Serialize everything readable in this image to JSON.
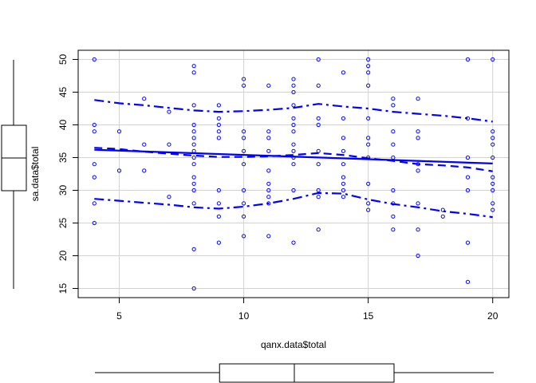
{
  "chart_data": {
    "type": "scatter",
    "title": "",
    "xlabel": "qanx.data$total",
    "ylabel": "sa.data$total",
    "xlim": [
      3.35,
      20.65
    ],
    "ylim": [
      13.6,
      51.4
    ],
    "x_ticks": [
      5,
      10,
      15,
      20
    ],
    "y_ticks": [
      15,
      20,
      25,
      30,
      35,
      40,
      45,
      50
    ],
    "grid": true,
    "point_color": "#0000ff",
    "line_color": "#0000ff",
    "points": [
      [
        4,
        50
      ],
      [
        4,
        40
      ],
      [
        4,
        39
      ],
      [
        4,
        34
      ],
      [
        4,
        32
      ],
      [
        4,
        28
      ],
      [
        4,
        25
      ],
      [
        5,
        39
      ],
      [
        5,
        33
      ],
      [
        6,
        44
      ],
      [
        6,
        37
      ],
      [
        6,
        33
      ],
      [
        7,
        42
      ],
      [
        7,
        37
      ],
      [
        7,
        29
      ],
      [
        8,
        49
      ],
      [
        8,
        48
      ],
      [
        8,
        43
      ],
      [
        8,
        40
      ],
      [
        8,
        39
      ],
      [
        8,
        38
      ],
      [
        8,
        37
      ],
      [
        8,
        36
      ],
      [
        8,
        35
      ],
      [
        8,
        34
      ],
      [
        8,
        32
      ],
      [
        8,
        31
      ],
      [
        8,
        30
      ],
      [
        8,
        28
      ],
      [
        8,
        21
      ],
      [
        8,
        15
      ],
      [
        9,
        43
      ],
      [
        9,
        41
      ],
      [
        9,
        40
      ],
      [
        9,
        39
      ],
      [
        9,
        38
      ],
      [
        9,
        30
      ],
      [
        9,
        28
      ],
      [
        9,
        26
      ],
      [
        9,
        22
      ],
      [
        10,
        47
      ],
      [
        10,
        46
      ],
      [
        10,
        39
      ],
      [
        10,
        38
      ],
      [
        10,
        36
      ],
      [
        10,
        34
      ],
      [
        10,
        30
      ],
      [
        10,
        28
      ],
      [
        10,
        26
      ],
      [
        10,
        23
      ],
      [
        11,
        46
      ],
      [
        11,
        39
      ],
      [
        11,
        38
      ],
      [
        11,
        36
      ],
      [
        11,
        33
      ],
      [
        11,
        31
      ],
      [
        11,
        30
      ],
      [
        11,
        29
      ],
      [
        11,
        28
      ],
      [
        11,
        23
      ],
      [
        12,
        47
      ],
      [
        12,
        46
      ],
      [
        12,
        45
      ],
      [
        12,
        43
      ],
      [
        12,
        41
      ],
      [
        12,
        40
      ],
      [
        12,
        39
      ],
      [
        12,
        37
      ],
      [
        12,
        36
      ],
      [
        12,
        35
      ],
      [
        12,
        34
      ],
      [
        12,
        30
      ],
      [
        12,
        22
      ],
      [
        13,
        50
      ],
      [
        13,
        46
      ],
      [
        13,
        41
      ],
      [
        13,
        40
      ],
      [
        13,
        36
      ],
      [
        13,
        34
      ],
      [
        13,
        30
      ],
      [
        13,
        29
      ],
      [
        13,
        24
      ],
      [
        14,
        48
      ],
      [
        14,
        41
      ],
      [
        14,
        38
      ],
      [
        14,
        36
      ],
      [
        14,
        34
      ],
      [
        14,
        32
      ],
      [
        14,
        31
      ],
      [
        14,
        30
      ],
      [
        14,
        29
      ],
      [
        15,
        50
      ],
      [
        15,
        49
      ],
      [
        15,
        48
      ],
      [
        15,
        46
      ],
      [
        15,
        41
      ],
      [
        15,
        38
      ],
      [
        15,
        37
      ],
      [
        15,
        35
      ],
      [
        15,
        31
      ],
      [
        15,
        28
      ],
      [
        15,
        27
      ],
      [
        16,
        44
      ],
      [
        16,
        43
      ],
      [
        16,
        39
      ],
      [
        16,
        37
      ],
      [
        16,
        35
      ],
      [
        16,
        30
      ],
      [
        16,
        28
      ],
      [
        16,
        26
      ],
      [
        16,
        24
      ],
      [
        17,
        44
      ],
      [
        17,
        39
      ],
      [
        17,
        38
      ],
      [
        17,
        34
      ],
      [
        17,
        33
      ],
      [
        17,
        28
      ],
      [
        17,
        24
      ],
      [
        17,
        20
      ],
      [
        18,
        27
      ],
      [
        18,
        26
      ],
      [
        19,
        50
      ],
      [
        19,
        41
      ],
      [
        19,
        35
      ],
      [
        19,
        32
      ],
      [
        19,
        30
      ],
      [
        19,
        22
      ],
      [
        19,
        16
      ],
      [
        20,
        50
      ],
      [
        20,
        39
      ],
      [
        20,
        38
      ],
      [
        20,
        37
      ],
      [
        20,
        35
      ],
      [
        20,
        32
      ],
      [
        20,
        31
      ],
      [
        20,
        30
      ],
      [
        20,
        28
      ],
      [
        20,
        27
      ]
    ],
    "series": [
      {
        "style": "solid",
        "x": [
          4,
          20
        ],
        "y": [
          36.2,
          34.1
        ]
      },
      {
        "style": "dashed",
        "x": [
          4,
          5,
          6,
          7,
          8,
          9,
          10,
          11,
          12,
          13,
          14,
          15,
          16,
          17,
          18,
          19,
          20
        ],
        "y": [
          36.5,
          36.3,
          35.9,
          35.6,
          35.3,
          35.1,
          35.1,
          35.2,
          35.4,
          35.7,
          35.4,
          34.9,
          34.5,
          34.0,
          33.8,
          33.5,
          32.9
        ]
      },
      {
        "style": "dashdot",
        "x": [
          4,
          5,
          6,
          7,
          8,
          9,
          10,
          11,
          12,
          13,
          14,
          15,
          16,
          17,
          18,
          19,
          20
        ],
        "y": [
          43.8,
          43.3,
          43.0,
          42.6,
          42.2,
          42.0,
          42.1,
          42.3,
          42.6,
          43.2,
          42.8,
          42.5,
          42.0,
          41.7,
          41.4,
          41.0,
          40.5
        ]
      },
      {
        "style": "dashdot",
        "x": [
          4,
          5,
          6,
          7,
          8,
          9,
          10,
          11,
          12,
          13,
          14,
          15,
          16,
          17,
          18,
          19,
          20
        ],
        "y": [
          28.7,
          28.4,
          28.1,
          27.8,
          27.4,
          27.2,
          27.5,
          28.0,
          28.7,
          29.6,
          29.5,
          28.6,
          27.9,
          27.4,
          26.8,
          26.4,
          25.9
        ]
      }
    ],
    "y_boxplot": {
      "min": 15,
      "q1": 30,
      "median": 35,
      "q3": 40,
      "max": 50
    },
    "x_boxplot": {
      "min": 4,
      "q1": 9,
      "median": 12,
      "q3": 16,
      "max": 20
    }
  }
}
